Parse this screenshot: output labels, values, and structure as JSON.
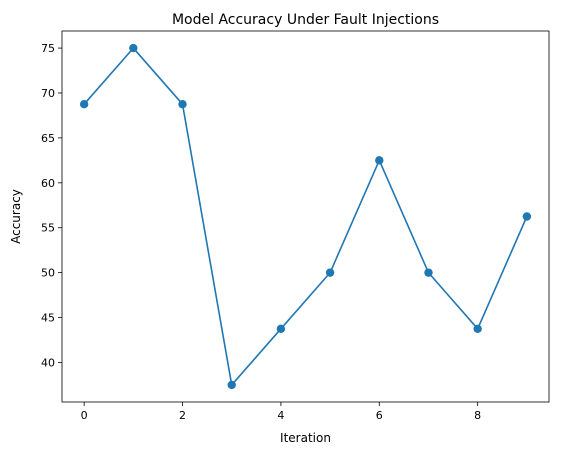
{
  "chart_data": {
    "type": "line",
    "title": "Model Accuracy Under Fault Injections",
    "xlabel": "Iteration",
    "ylabel": "Accuracy",
    "x": [
      0,
      1,
      2,
      3,
      4,
      5,
      6,
      7,
      8,
      9
    ],
    "series": [
      {
        "values": [
          68.75,
          75.0,
          68.75,
          37.5,
          43.75,
          50.0,
          62.5,
          50.0,
          43.75,
          56.25
        ],
        "color": "#1f77b4",
        "marker": "circle"
      }
    ],
    "xlim": [
      -0.45,
      9.45
    ],
    "ylim": [
      35.6,
      76.9
    ],
    "xticks": [
      "0",
      "2",
      "4",
      "6",
      "8"
    ],
    "yticks": [
      "40",
      "45",
      "50",
      "55",
      "60",
      "65",
      "70",
      "75"
    ],
    "grid": false,
    "legend": "none"
  }
}
